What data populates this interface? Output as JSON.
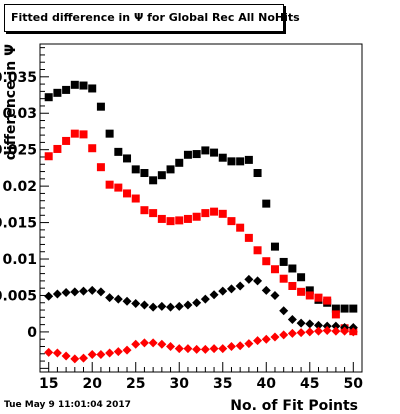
{
  "chart_data": {
    "type": "scatter",
    "title": "Fitted difference in Ψ  for Global Rec All NoHits",
    "xlabel": "No. of Fit Points",
    "ylabel": "difference in Ψ",
    "xlim": [
      14,
      51
    ],
    "ylim": [
      -0.0055,
      0.0395
    ],
    "x_ticks": [
      15,
      20,
      25,
      30,
      35,
      40,
      45,
      50
    ],
    "y_ticks": [
      {
        "value": 0,
        "label": "0"
      },
      {
        "value": 0.005,
        "label": "0.005"
      },
      {
        "value": 0.01,
        "label": "0.01"
      },
      {
        "value": 0.015,
        "label": "0.015"
      },
      {
        "value": 0.02,
        "label": "0.02"
      },
      {
        "value": 0.025,
        "label": "0.025"
      },
      {
        "value": 0.03,
        "label": "0.03"
      },
      {
        "value": 0.035,
        "label": "0.035"
      }
    ],
    "series": [
      {
        "marker": "square",
        "color": "#000000",
        "points": [
          [
            15,
            0.0322
          ],
          [
            16,
            0.0328
          ],
          [
            17,
            0.0332
          ],
          [
            18,
            0.0339
          ],
          [
            19,
            0.0338
          ],
          [
            20,
            0.0334
          ],
          [
            21,
            0.0309
          ],
          [
            22,
            0.0272
          ],
          [
            23,
            0.0247
          ],
          [
            24,
            0.0238
          ],
          [
            25,
            0.0223
          ],
          [
            26,
            0.0218
          ],
          [
            27,
            0.0208
          ],
          [
            28,
            0.0215
          ],
          [
            29,
            0.0223
          ],
          [
            30,
            0.0232
          ],
          [
            31,
            0.0243
          ],
          [
            32,
            0.0244
          ],
          [
            33,
            0.0249
          ],
          [
            34,
            0.0246
          ],
          [
            35,
            0.0239
          ],
          [
            36,
            0.0234
          ],
          [
            37,
            0.0234
          ],
          [
            38,
            0.0236
          ],
          [
            39,
            0.0218
          ],
          [
            40,
            0.0176
          ],
          [
            41,
            0.0117
          ],
          [
            42,
            0.0096
          ],
          [
            43,
            0.0087
          ],
          [
            44,
            0.0075
          ],
          [
            45,
            0.0057
          ],
          [
            46,
            0.0044
          ],
          [
            47,
            0.004
          ],
          [
            48,
            0.0032
          ],
          [
            49,
            0.0032
          ],
          [
            50,
            0.0032
          ]
        ]
      },
      {
        "marker": "square",
        "color": "#ff0000",
        "points": [
          [
            15,
            0.0241
          ],
          [
            16,
            0.0251
          ],
          [
            17,
            0.0262
          ],
          [
            18,
            0.0272
          ],
          [
            19,
            0.0271
          ],
          [
            20,
            0.0252
          ],
          [
            21,
            0.0226
          ],
          [
            22,
            0.0202
          ],
          [
            23,
            0.0198
          ],
          [
            24,
            0.019
          ],
          [
            25,
            0.0183
          ],
          [
            26,
            0.0167
          ],
          [
            27,
            0.0163
          ],
          [
            28,
            0.0155
          ],
          [
            29,
            0.0152
          ],
          [
            30,
            0.0153
          ],
          [
            31,
            0.0155
          ],
          [
            32,
            0.0158
          ],
          [
            33,
            0.0163
          ],
          [
            34,
            0.0165
          ],
          [
            35,
            0.0162
          ],
          [
            36,
            0.0152
          ],
          [
            37,
            0.0143
          ],
          [
            38,
            0.0129
          ],
          [
            39,
            0.0112
          ],
          [
            40,
            0.0097
          ],
          [
            41,
            0.0086
          ],
          [
            42,
            0.0073
          ],
          [
            43,
            0.0063
          ],
          [
            44,
            0.0055
          ],
          [
            45,
            0.005
          ],
          [
            46,
            0.0047
          ],
          [
            47,
            0.0043
          ],
          [
            48,
            0.0024
          ],
          [
            49,
            0.0005
          ],
          [
            50,
            0.0001
          ]
        ]
      },
      {
        "marker": "diamond",
        "color": "#000000",
        "points": [
          [
            15,
            0.0049
          ],
          [
            16,
            0.0052
          ],
          [
            17,
            0.0054
          ],
          [
            18,
            0.0055
          ],
          [
            19,
            0.0056
          ],
          [
            20,
            0.0057
          ],
          [
            21,
            0.0055
          ],
          [
            22,
            0.0047
          ],
          [
            23,
            0.0045
          ],
          [
            24,
            0.0042
          ],
          [
            25,
            0.0039
          ],
          [
            26,
            0.0037
          ],
          [
            27,
            0.0034
          ],
          [
            28,
            0.0035
          ],
          [
            29,
            0.0034
          ],
          [
            30,
            0.0035
          ],
          [
            31,
            0.0037
          ],
          [
            32,
            0.004
          ],
          [
            33,
            0.0045
          ],
          [
            34,
            0.0051
          ],
          [
            35,
            0.0056
          ],
          [
            36,
            0.0059
          ],
          [
            37,
            0.0063
          ],
          [
            38,
            0.0072
          ],
          [
            39,
            0.007
          ],
          [
            40,
            0.0057
          ],
          [
            41,
            0.005
          ],
          [
            42,
            0.0029
          ],
          [
            43,
            0.0017
          ],
          [
            44,
            0.0012
          ],
          [
            45,
            0.0011
          ],
          [
            46,
            0.0009
          ],
          [
            47,
            0.0008
          ],
          [
            48,
            0.0008
          ],
          [
            49,
            0.0006
          ],
          [
            50,
            0.0006
          ]
        ]
      },
      {
        "marker": "diamond",
        "color": "#ff0000",
        "points": [
          [
            15,
            -0.0028
          ],
          [
            16,
            -0.0029
          ],
          [
            17,
            -0.0033
          ],
          [
            18,
            -0.0037
          ],
          [
            19,
            -0.0036
          ],
          [
            20,
            -0.0031
          ],
          [
            21,
            -0.0031
          ],
          [
            22,
            -0.0029
          ],
          [
            23,
            -0.0027
          ],
          [
            24,
            -0.0025
          ],
          [
            25,
            -0.0017
          ],
          [
            26,
            -0.0015
          ],
          [
            27,
            -0.0015
          ],
          [
            28,
            -0.0017
          ],
          [
            29,
            -0.002
          ],
          [
            30,
            -0.0023
          ],
          [
            31,
            -0.0023
          ],
          [
            32,
            -0.0024
          ],
          [
            33,
            -0.0024
          ],
          [
            34,
            -0.0023
          ],
          [
            35,
            -0.0023
          ],
          [
            36,
            -0.002
          ],
          [
            37,
            -0.0019
          ],
          [
            38,
            -0.0016
          ],
          [
            39,
            -0.0012
          ],
          [
            40,
            -0.001
          ],
          [
            41,
            -0.0007
          ],
          [
            42,
            -0.0004
          ],
          [
            43,
            -0.0002
          ],
          [
            44,
            -0.0001
          ],
          [
            45,
            0.0
          ],
          [
            46,
            0.0001
          ],
          [
            47,
            0.0002
          ],
          [
            48,
            0.0001
          ],
          [
            49,
            0.0001
          ],
          [
            50,
            0.0
          ]
        ]
      }
    ]
  },
  "footer": {
    "timestamp": "Tue May  9 11:01:04 2017"
  }
}
